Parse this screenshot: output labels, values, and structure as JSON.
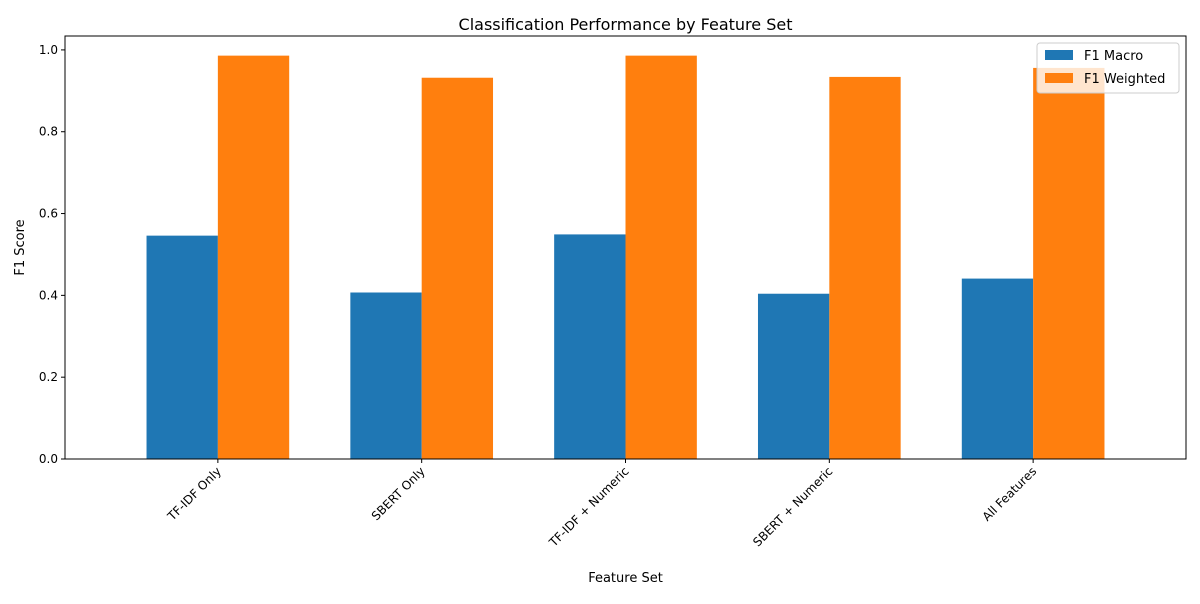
{
  "chart_data": {
    "type": "bar",
    "title": "Classification Performance by Feature Set",
    "xlabel": "Feature Set",
    "ylabel": "F1 Score",
    "categories": [
      "TF-IDF Only",
      "SBERT Only",
      "TF-IDF + Numeric",
      "SBERT + Numeric",
      "All Features"
    ],
    "series": [
      {
        "name": "F1 Macro",
        "color": "#1f77b4",
        "values": [
          0.546,
          0.407,
          0.549,
          0.404,
          0.441
        ]
      },
      {
        "name": "F1 Weighted",
        "color": "#ff7f0e",
        "values": [
          0.986,
          0.932,
          0.986,
          0.934,
          0.956
        ]
      }
    ],
    "ylim": [
      0,
      1.034
    ],
    "yticks": [
      0.0,
      0.2,
      0.4,
      0.6,
      0.8,
      1.0
    ],
    "ytick_labels": [
      "0.0",
      "0.2",
      "0.4",
      "0.6",
      "0.8",
      "1.0"
    ],
    "grid": false,
    "legend_position": "top-right",
    "xtick_rotation": "45 degrees"
  }
}
